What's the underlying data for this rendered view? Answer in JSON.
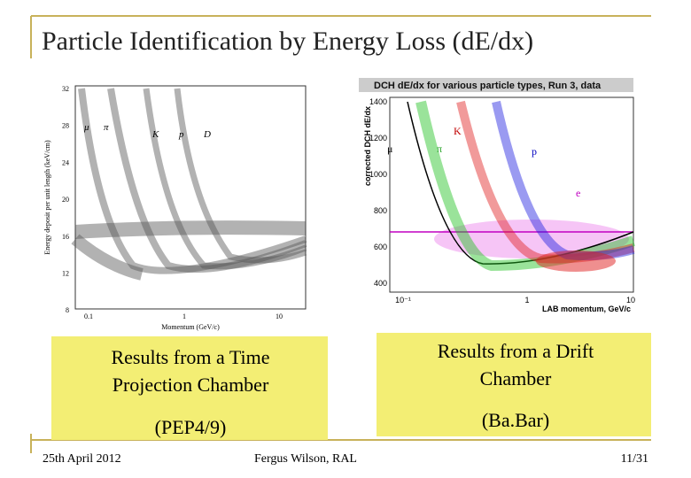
{
  "title": "Particle Identification by Energy Loss (dE/dx)",
  "left_plot": {
    "y_label": "Energy deposit per unit length (keV/cm)",
    "x_label": "Momentum (GeV/c)",
    "yticks": [
      "32",
      "28",
      "24",
      "20",
      "16",
      "12",
      "8"
    ],
    "xticks": [
      "0.1",
      "1",
      "10"
    ],
    "particles": [
      "μ",
      "π",
      "K",
      "p",
      "D"
    ]
  },
  "right_plot": {
    "title": "DCH dE/dx for various particle types, Run 3, data",
    "y_label": "corrected DCH dE/dx",
    "x_label": "LAB momentum, GeV/c",
    "yticks": [
      "1400",
      "1200",
      "1000",
      "800",
      "600",
      "400"
    ],
    "xticks": [
      "10⁻¹",
      "1",
      "10"
    ],
    "particles": [
      "μ",
      "π",
      "K",
      "p",
      "e"
    ]
  },
  "left_box": {
    "lines": [
      "Results from a Time",
      "Projection Chamber"
    ],
    "note": "(PEP4/9)"
  },
  "right_box": {
    "lines": [
      "Results from a Drift",
      "Chamber"
    ],
    "note": "(Ba.Bar)"
  },
  "footer": {
    "date": "25th April 2012",
    "author": "Fergus Wilson, RAL",
    "page": "11/31"
  }
}
